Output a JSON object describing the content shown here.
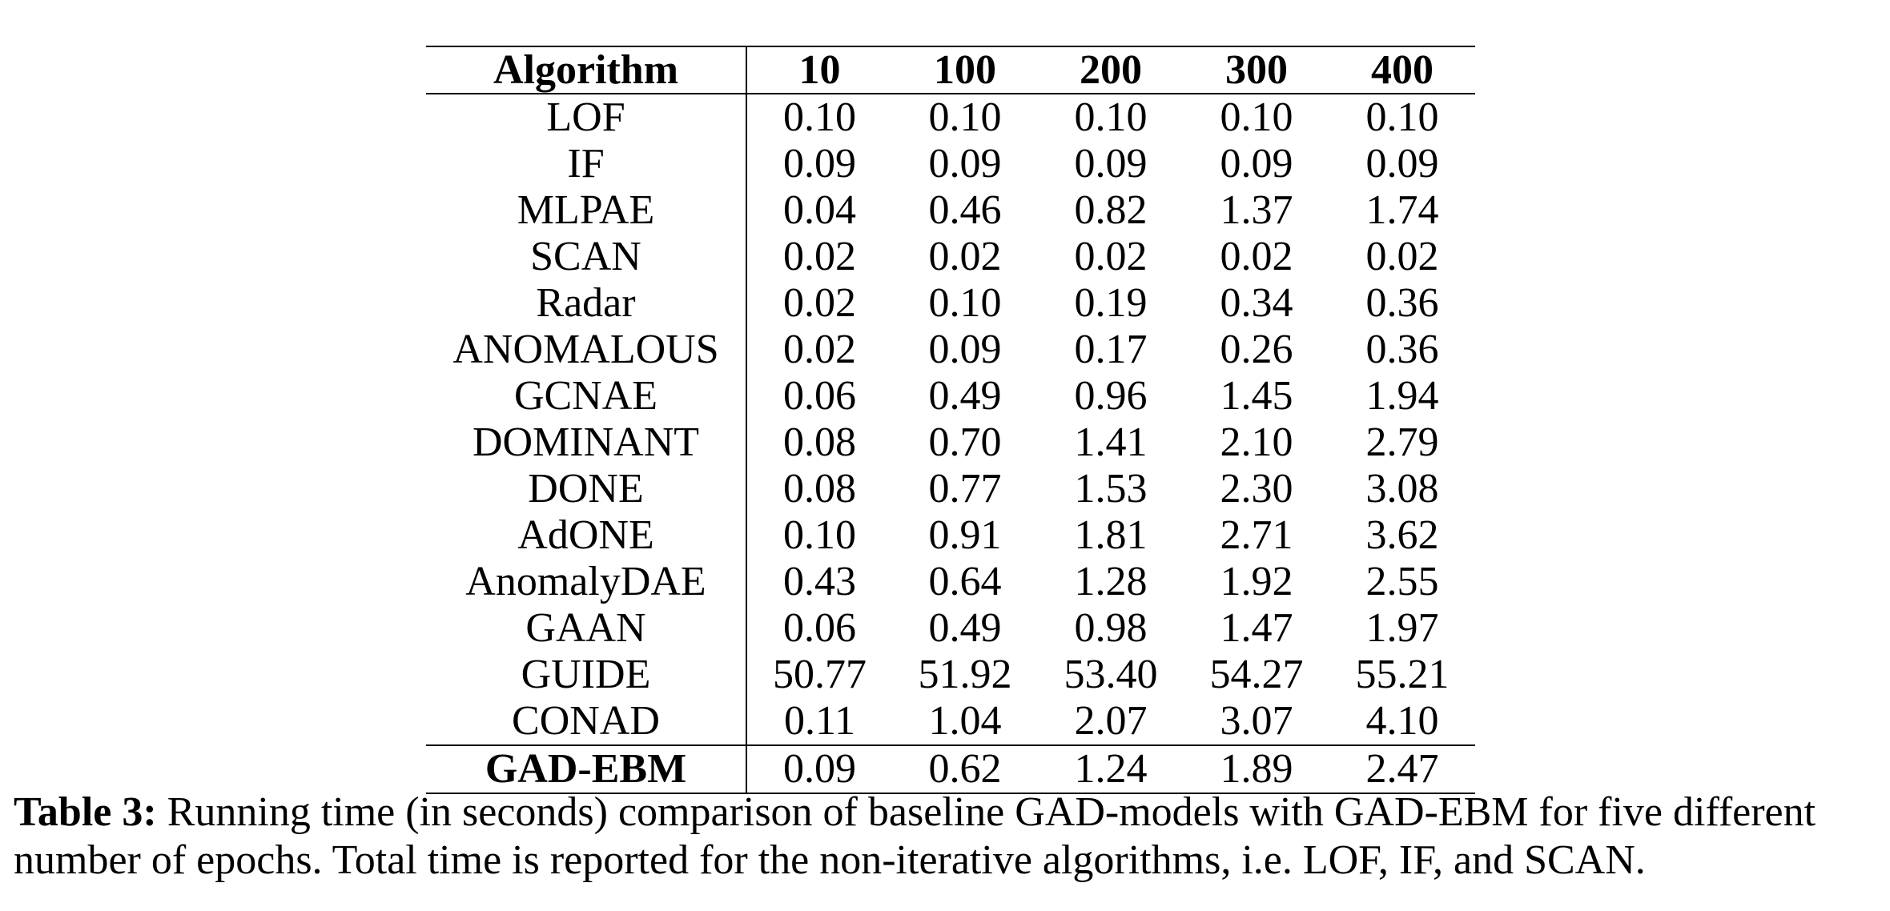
{
  "table": {
    "columns": [
      "Algorithm",
      "10",
      "100",
      "200",
      "300",
      "400"
    ],
    "rows": [
      {
        "name": "LOF",
        "values": [
          "0.10",
          "0.10",
          "0.10",
          "0.10",
          "0.10"
        ]
      },
      {
        "name": "IF",
        "values": [
          "0.09",
          "0.09",
          "0.09",
          "0.09",
          "0.09"
        ]
      },
      {
        "name": "MLPAE",
        "values": [
          "0.04",
          "0.46",
          "0.82",
          "1.37",
          "1.74"
        ]
      },
      {
        "name": "SCAN",
        "values": [
          "0.02",
          "0.02",
          "0.02",
          "0.02",
          "0.02"
        ]
      },
      {
        "name": "Radar",
        "values": [
          "0.02",
          "0.10",
          "0.19",
          "0.34",
          "0.36"
        ]
      },
      {
        "name": "ANOMALOUS",
        "values": [
          "0.02",
          "0.09",
          "0.17",
          "0.26",
          "0.36"
        ]
      },
      {
        "name": "GCNAE",
        "values": [
          "0.06",
          "0.49",
          "0.96",
          "1.45",
          "1.94"
        ]
      },
      {
        "name": "DOMINANT",
        "values": [
          "0.08",
          "0.70",
          "1.41",
          "2.10",
          "2.79"
        ]
      },
      {
        "name": "DONE",
        "values": [
          "0.08",
          "0.77",
          "1.53",
          "2.30",
          "3.08"
        ]
      },
      {
        "name": "AdONE",
        "values": [
          "0.10",
          "0.91",
          "1.81",
          "2.71",
          "3.62"
        ]
      },
      {
        "name": "AnomalyDAE",
        "values": [
          "0.43",
          "0.64",
          "1.28",
          "1.92",
          "2.55"
        ]
      },
      {
        "name": "GAAN",
        "values": [
          "0.06",
          "0.49",
          "0.98",
          "1.47",
          "1.97"
        ]
      },
      {
        "name": "GUIDE",
        "values": [
          "50.77",
          "51.92",
          "53.40",
          "54.27",
          "55.21"
        ]
      },
      {
        "name": "CONAD",
        "values": [
          "0.11",
          "1.04",
          "2.07",
          "3.07",
          "4.10"
        ]
      }
    ],
    "ours": {
      "name": "GAD-EBM",
      "values": [
        "0.09",
        "0.62",
        "1.24",
        "1.89",
        "2.47"
      ]
    }
  },
  "caption": {
    "label": "Table 3:",
    "text": " Running time (in seconds) comparison of baseline GAD-models with GAD-EBM for five different number of epochs. Total time is reported for the non-iterative algorithms, i.e. LOF, IF, and SCAN."
  }
}
